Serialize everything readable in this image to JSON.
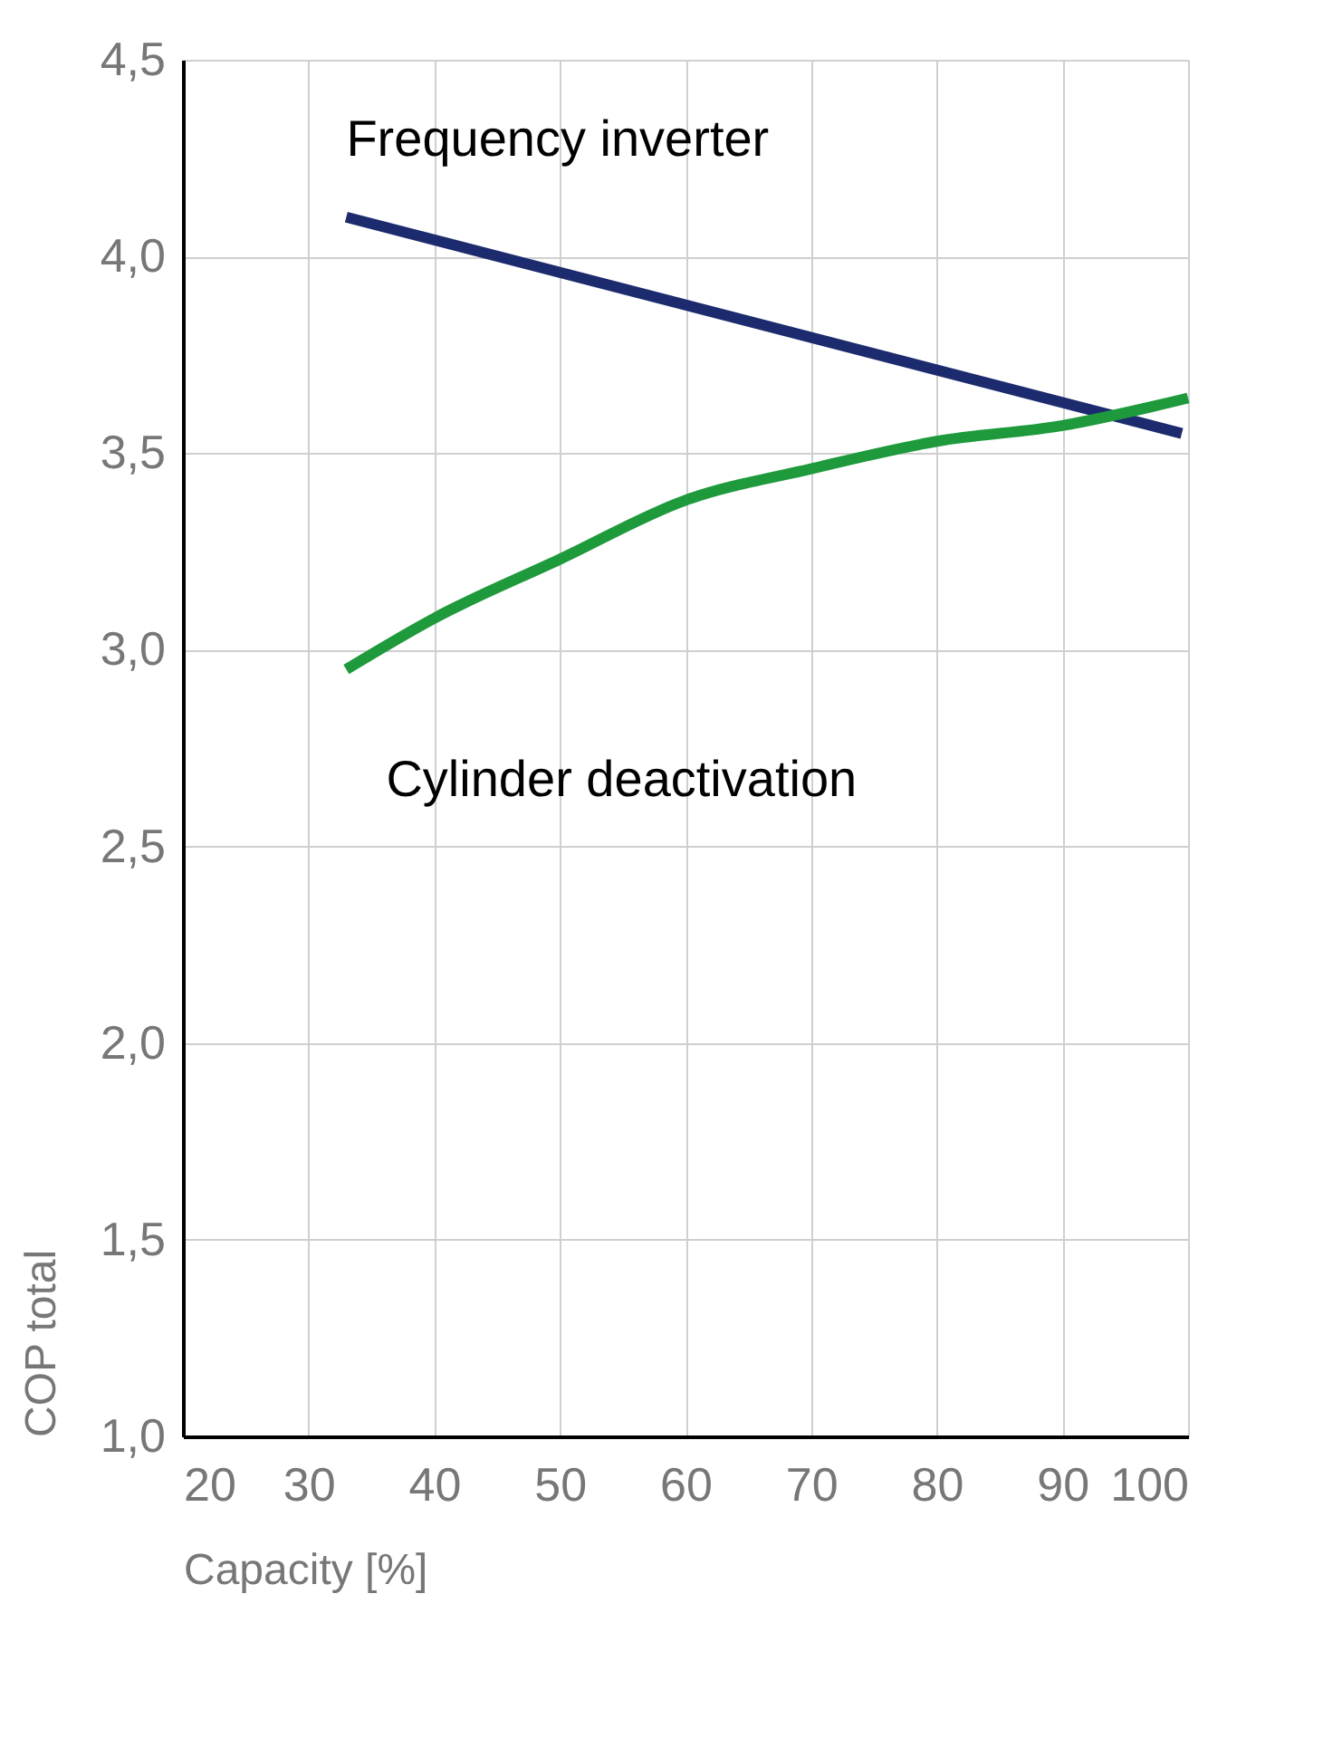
{
  "chart_data": {
    "type": "line",
    "xlabel": "Capacity [%]",
    "ylabel": "COP  total",
    "xlim": [
      20,
      100
    ],
    "ylim": [
      1.0,
      4.5
    ],
    "xticks": [
      20,
      30,
      40,
      50,
      60,
      70,
      80,
      90,
      100
    ],
    "yticks": [
      {
        "value": 1.0,
        "label": "1,0"
      },
      {
        "value": 1.5,
        "label": "1,5"
      },
      {
        "value": 2.0,
        "label": "2,0"
      },
      {
        "value": 2.5,
        "label": "2,5"
      },
      {
        "value": 3.0,
        "label": "3,0"
      },
      {
        "value": 3.5,
        "label": "3,5"
      },
      {
        "value": 4.0,
        "label": "4,0"
      },
      {
        "value": 4.5,
        "label": "4,5"
      }
    ],
    "grid": true,
    "marker": "none",
    "line_style": "solid",
    "series": [
      {
        "name": "Frequency inverter",
        "color": "#1c2b6e",
        "x": [
          33,
          99.5
        ],
        "values": [
          4.1,
          3.55
        ]
      },
      {
        "name": "Cylinder deactivation",
        "color": "#1e9a3c",
        "x": [
          33,
          40,
          50,
          60,
          70,
          80,
          90,
          100
        ],
        "values": [
          2.95,
          3.08,
          3.23,
          3.38,
          3.46,
          3.53,
          3.57,
          3.64
        ]
      }
    ]
  }
}
